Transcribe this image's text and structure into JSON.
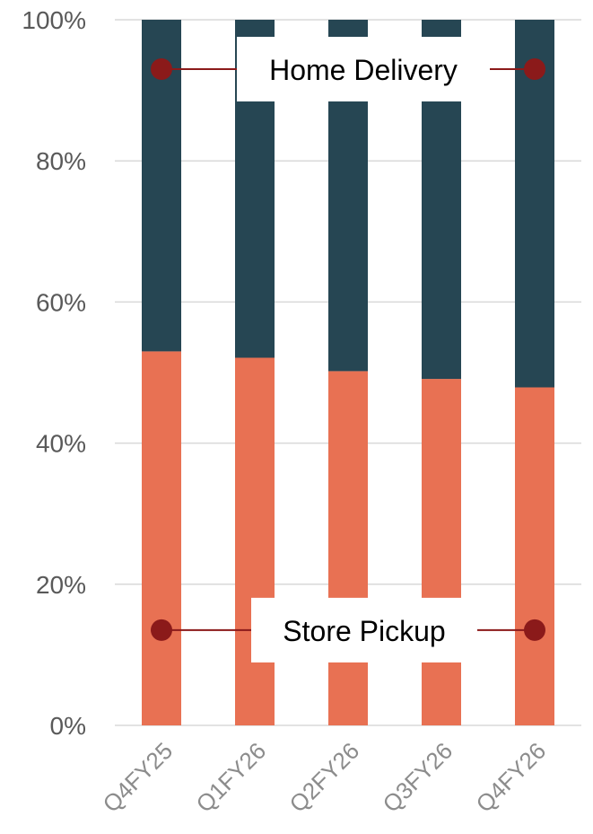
{
  "chart_data": {
    "type": "bar",
    "stacked": true,
    "categories": [
      "Q4FY25",
      "Q1FY26",
      "Q2FY26",
      "Q3FY26",
      "Q4FY26"
    ],
    "series": [
      {
        "name": "Store Pickup",
        "color": "#e87153",
        "values": [
          53.0,
          52.1,
          50.2,
          49.1,
          47.9
        ]
      },
      {
        "name": "Home Delivery",
        "color": "#264653",
        "values": [
          47.0,
          47.9,
          49.8,
          50.9,
          52.1
        ]
      }
    ],
    "ylim": [
      0,
      100
    ],
    "yticks": [
      "0%",
      "20%",
      "40%",
      "60%",
      "80%",
      "100%"
    ],
    "ytick_values": [
      0,
      20,
      40,
      60,
      80,
      100
    ],
    "grid": true,
    "legend": "inline-labels",
    "annotation_color": "#8b1a1a"
  }
}
